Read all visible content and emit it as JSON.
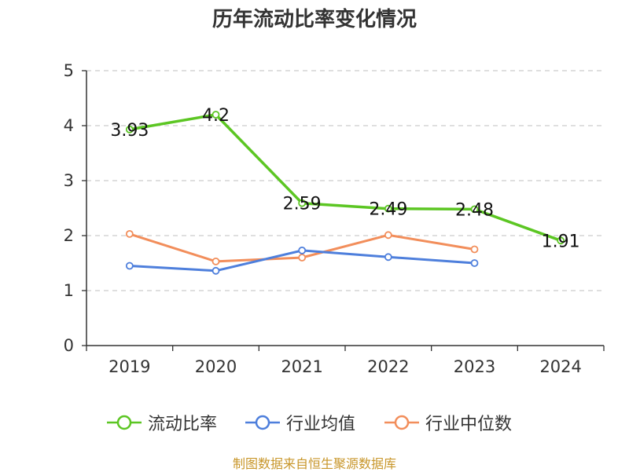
{
  "chart_data": {
    "type": "line",
    "title": "历年流动比率变化情况",
    "categories": [
      "2019",
      "2020",
      "2021",
      "2022",
      "2023",
      "2024"
    ],
    "ylim": [
      0,
      5
    ],
    "yticks": [
      0,
      1,
      2,
      3,
      4,
      5
    ],
    "grid": true,
    "legend_position": "bottom",
    "series": [
      {
        "name": "流动比率",
        "color": "#5cc623",
        "values": [
          3.93,
          4.2,
          2.59,
          2.49,
          2.48,
          1.91
        ],
        "labels": [
          "3.93",
          "4.2",
          "2.59",
          "2.49",
          "2.48",
          "1.91"
        ]
      },
      {
        "name": "行业均值",
        "color": "#4e7fdc",
        "values": [
          1.45,
          1.36,
          1.73,
          1.61,
          1.5,
          null
        ]
      },
      {
        "name": "行业中位数",
        "color": "#f28e5b",
        "values": [
          2.03,
          1.53,
          1.6,
          2.01,
          1.75,
          null
        ]
      }
    ]
  },
  "source": "制图数据来自恒生聚源数据库"
}
